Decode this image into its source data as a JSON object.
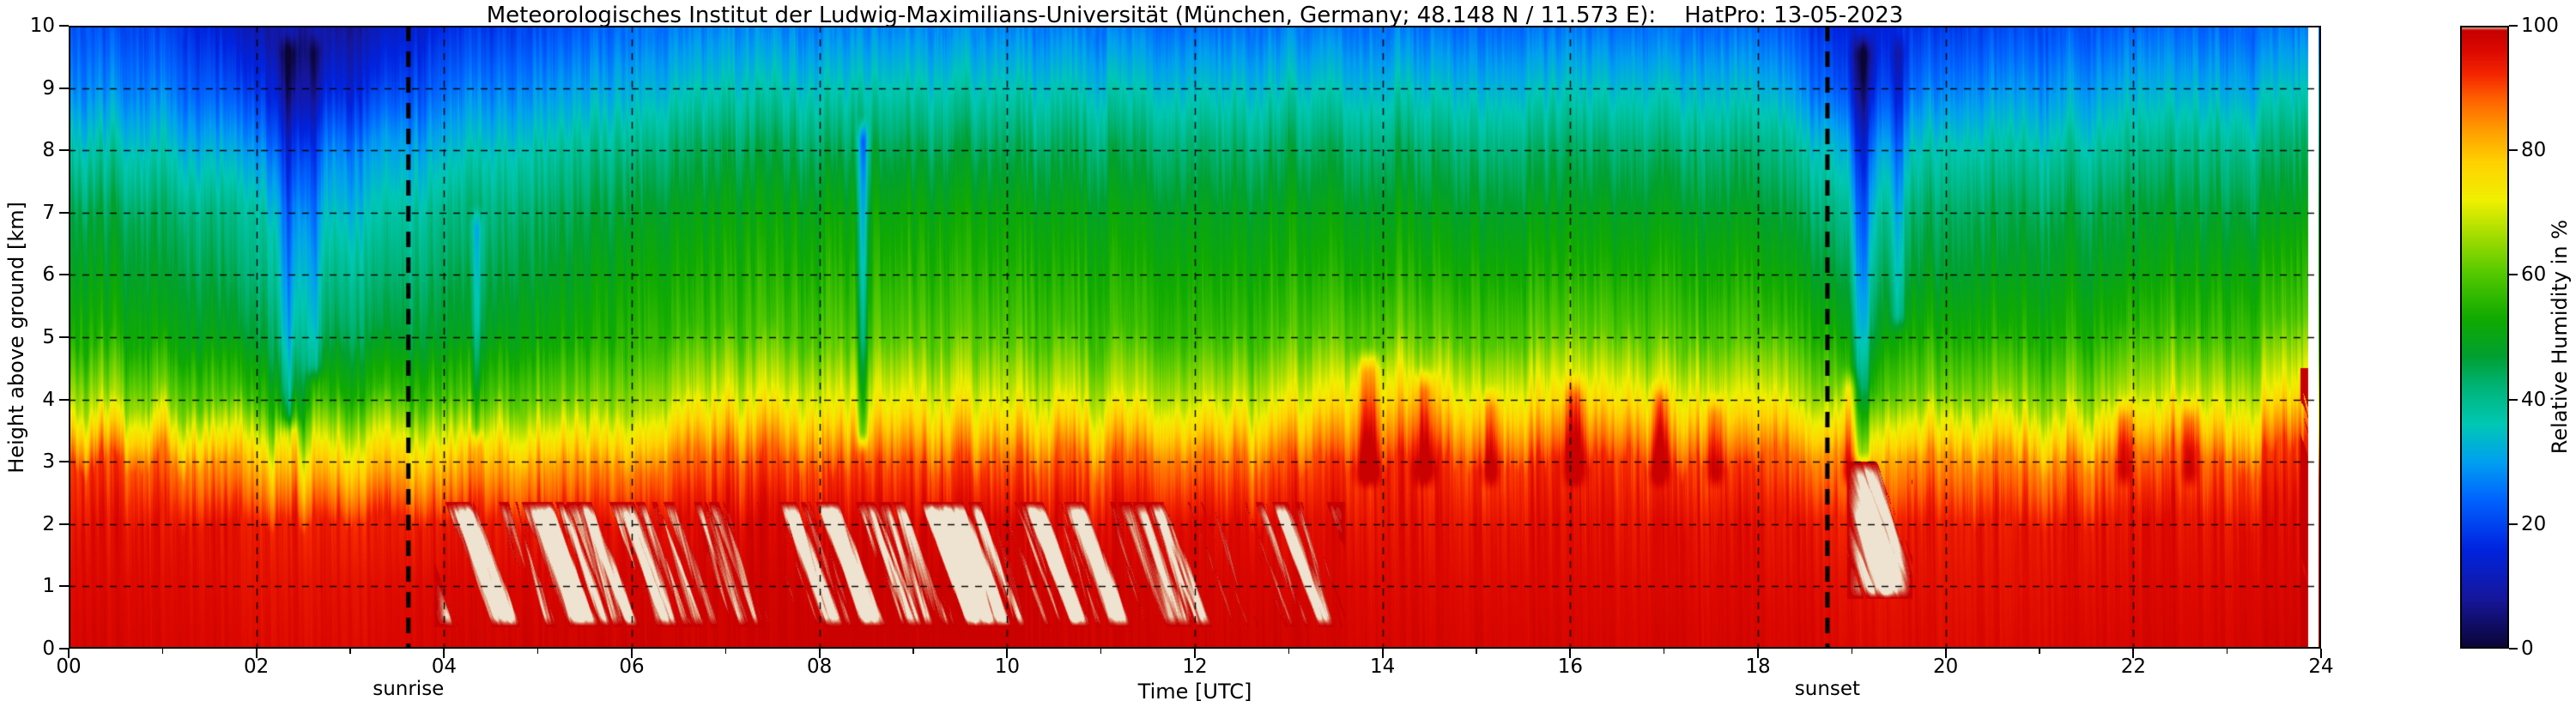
{
  "title": "Meteorologisches Institut der Ludwig-Maximilians-Universität (München, Germany; 48.148 N / 11.573 E):    HatPro: 13-05-2023",
  "axes": {
    "xlabel": "Time [UTC]",
    "ylabel": "Height above ground [km]",
    "xlim": [
      0,
      24
    ],
    "ylim": [
      0,
      10
    ],
    "x_ticks": {
      "major": [
        0,
        2,
        4,
        6,
        8,
        10,
        12,
        14,
        16,
        18,
        20,
        22,
        24
      ],
      "labels": [
        "00",
        "02",
        "04",
        "06",
        "08",
        "10",
        "12",
        "14",
        "16",
        "18",
        "20",
        "22",
        "24"
      ],
      "minor": [
        1,
        3,
        5,
        7,
        9,
        11,
        13,
        15,
        17,
        19,
        21,
        23
      ]
    },
    "y_ticks": {
      "major": [
        0,
        1,
        2,
        3,
        4,
        5,
        6,
        7,
        8,
        9,
        10
      ],
      "labels": [
        "0",
        "1",
        "2",
        "3",
        "4",
        "5",
        "6",
        "7",
        "8",
        "9",
        "10"
      ]
    },
    "grid_dashed": true
  },
  "colorbar": {
    "label": "Relative Humidity in %",
    "ticks": [
      0,
      20,
      40,
      60,
      80,
      100
    ],
    "tick_labels": [
      "0",
      "20",
      "40",
      "60",
      "80",
      "100"
    ],
    "lim": [
      0,
      100
    ]
  },
  "annotations": {
    "sunrise": {
      "t": 3.62,
      "label": "sunrise"
    },
    "sunset": {
      "t": 18.74,
      "label": "sunset"
    }
  },
  "chart_data": {
    "type": "heatmap",
    "value_name": "relative_humidity_percent",
    "x_hours": [
      0,
      1,
      2,
      3,
      4,
      5,
      6,
      7,
      8,
      9,
      10,
      11,
      12,
      13,
      14,
      15,
      16,
      17,
      18,
      19,
      20,
      21,
      22,
      23,
      24
    ],
    "y_km": [
      0,
      1,
      2,
      3,
      4,
      5,
      6,
      7,
      8,
      9,
      10
    ],
    "rh_grid": [
      [
        97,
        96,
        95,
        92,
        68,
        55,
        50,
        46,
        38,
        28,
        22
      ],
      [
        97,
        96,
        95,
        88,
        64,
        52,
        48,
        44,
        36,
        27,
        20
      ],
      [
        96,
        95,
        94,
        80,
        57,
        47,
        42,
        38,
        29,
        18,
        10
      ],
      [
        96,
        95,
        93,
        76,
        55,
        45,
        40,
        34,
        27,
        15,
        8
      ],
      [
        97,
        96,
        94,
        79,
        58,
        48,
        44,
        40,
        33,
        24,
        16
      ],
      [
        98,
        97,
        95,
        83,
        62,
        52,
        48,
        44,
        38,
        29,
        21
      ],
      [
        98,
        97,
        96,
        86,
        66,
        56,
        52,
        48,
        42,
        33,
        25
      ],
      [
        98,
        98,
        96,
        88,
        70,
        58,
        54,
        50,
        44,
        35,
        27
      ],
      [
        99,
        98,
        97,
        90,
        72,
        60,
        55,
        51,
        45,
        36,
        27
      ],
      [
        99,
        99,
        97,
        90,
        73,
        61,
        56,
        52,
        46,
        37,
        28
      ],
      [
        99,
        98,
        97,
        89,
        71,
        60,
        55,
        51,
        45,
        36,
        27
      ],
      [
        98,
        98,
        96,
        88,
        69,
        58,
        54,
        50,
        44,
        35,
        26
      ],
      [
        98,
        97,
        96,
        87,
        68,
        57,
        53,
        49,
        43,
        34,
        25
      ],
      [
        98,
        97,
        96,
        89,
        71,
        59,
        54,
        50,
        44,
        35,
        26
      ],
      [
        97,
        96,
        95,
        93,
        78,
        62,
        55,
        50,
        44,
        35,
        26
      ],
      [
        97,
        96,
        95,
        91,
        74,
        60,
        54,
        49,
        43,
        34,
        25
      ],
      [
        97,
        96,
        95,
        92,
        75,
        61,
        54,
        49,
        43,
        34,
        25
      ],
      [
        97,
        96,
        95,
        91,
        74,
        60,
        54,
        49,
        43,
        34,
        25
      ],
      [
        97,
        96,
        95,
        90,
        72,
        59,
        53,
        48,
        42,
        33,
        24
      ],
      [
        96,
        95,
        93,
        82,
        61,
        51,
        45,
        39,
        31,
        20,
        14
      ],
      [
        96,
        95,
        94,
        85,
        64,
        54,
        48,
        44,
        37,
        27,
        19
      ],
      [
        96,
        95,
        94,
        85,
        65,
        54,
        49,
        45,
        38,
        29,
        21
      ],
      [
        97,
        96,
        95,
        87,
        67,
        56,
        50,
        46,
        39,
        31,
        23
      ],
      [
        97,
        96,
        95,
        89,
        70,
        58,
        52,
        47,
        41,
        32,
        24
      ],
      [
        98,
        97,
        96,
        92,
        73,
        60,
        54,
        48,
        42,
        33,
        25
      ]
    ],
    "colormap_stops": [
      [
        0,
        "#0a0533"
      ],
      [
        8,
        "#16169b"
      ],
      [
        16,
        "#0024e0"
      ],
      [
        24,
        "#0064ff"
      ],
      [
        30,
        "#00a0f0"
      ],
      [
        36,
        "#00c8b4"
      ],
      [
        42,
        "#00b478"
      ],
      [
        47,
        "#00a030"
      ],
      [
        53,
        "#10aa00"
      ],
      [
        60,
        "#52c800"
      ],
      [
        66,
        "#a0dc00"
      ],
      [
        72,
        "#f0f000"
      ],
      [
        78,
        "#ffd200"
      ],
      [
        83,
        "#ffa000"
      ],
      [
        88,
        "#ff6400"
      ],
      [
        92,
        "#f52800"
      ],
      [
        96,
        "#dc0800"
      ],
      [
        99.2,
        "#c60000"
      ],
      [
        99.7,
        "#dc9678"
      ],
      [
        100,
        "#eee2d0"
      ]
    ],
    "cloud_patches": [
      {
        "t0": 3.9,
        "t1": 13.6,
        "h0": 0.35,
        "h1": 2.35,
        "thr": 0.5
      },
      {
        "t0": 18.95,
        "t1": 19.65,
        "h0": 0.8,
        "h1": 3.0,
        "thr": 0.44
      },
      {
        "t0": 23.78,
        "t1": 23.86,
        "h0": 0.0,
        "h1": 4.5,
        "thr": 0.3
      }
    ],
    "dry_streaks": [
      {
        "t": 2.35,
        "w": 0.1,
        "h0": 3.4,
        "h1": 10,
        "d": 16
      },
      {
        "t": 2.62,
        "w": 0.08,
        "h0": 4.2,
        "h1": 10,
        "d": 12
      },
      {
        "t": 4.35,
        "w": 0.06,
        "h0": 3.2,
        "h1": 7.2,
        "d": 12
      },
      {
        "t": 8.46,
        "w": 0.05,
        "h0": 3.1,
        "h1": 8.6,
        "d": 22
      },
      {
        "t": 19.12,
        "w": 0.1,
        "h0": 2.8,
        "h1": 10,
        "d": 20
      },
      {
        "t": 19.5,
        "w": 0.07,
        "h0": 5.0,
        "h1": 10,
        "d": 11
      }
    ],
    "wet_streaks": [
      {
        "t": 13.85,
        "w": 0.12,
        "h0": 2.5,
        "h1": 4.9,
        "a": 16
      },
      {
        "t": 14.45,
        "w": 0.1,
        "h0": 2.5,
        "h1": 4.6,
        "a": 14
      },
      {
        "t": 15.15,
        "w": 0.08,
        "h0": 2.5,
        "h1": 4.3,
        "a": 12
      },
      {
        "t": 16.05,
        "w": 0.1,
        "h0": 2.5,
        "h1": 4.5,
        "a": 13
      },
      {
        "t": 16.95,
        "w": 0.09,
        "h0": 2.5,
        "h1": 4.4,
        "a": 12
      },
      {
        "t": 17.55,
        "w": 0.08,
        "h0": 2.5,
        "h1": 4.2,
        "a": 11
      },
      {
        "t": 18.98,
        "w": 0.08,
        "h0": 2.5,
        "h1": 4.6,
        "a": 14
      },
      {
        "t": 21.9,
        "w": 0.08,
        "h0": 2.5,
        "h1": 4.1,
        "a": 10
      },
      {
        "t": 22.6,
        "w": 0.08,
        "h0": 2.5,
        "h1": 4.1,
        "a": 10
      }
    ],
    "missing": [
      {
        "t0": 23.86,
        "t1": 23.97
      }
    ],
    "noise": {
      "seed": 11,
      "col_amp": 0.42,
      "spike_amp": 0.26,
      "jitter": 4.5
    }
  }
}
